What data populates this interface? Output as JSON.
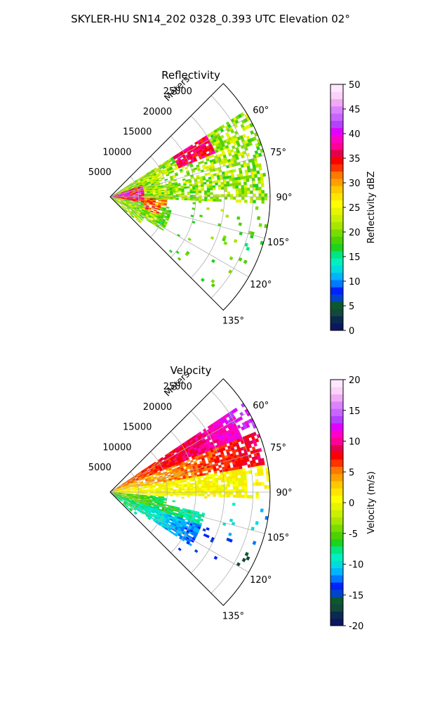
{
  "figure": {
    "suptitle": "SKYLER-HU  SN14_202  0328_0.393 UTC Elevation 02°"
  },
  "chart_data": [
    {
      "type": "heatmap",
      "title": "Reflectivity",
      "radial_label": "Meters",
      "radial_ticks": [
        5000,
        10000,
        15000,
        20000,
        25000
      ],
      "radial_tick_labels": [
        "5000",
        "10000",
        "15000",
        "20000",
        "25000"
      ],
      "r_max": 28000,
      "theta_range_deg": [
        45,
        135
      ],
      "angle_ticks": [
        60,
        75,
        90,
        105,
        120,
        135
      ],
      "angle_tick_labels": [
        "60°",
        "75°",
        "90°",
        "105°",
        "120°",
        "135°"
      ],
      "grid": true,
      "colorbar": {
        "label": "Reflectivity dBZ",
        "vmin": 0,
        "vmax": 50,
        "ticks": [
          0,
          5,
          10,
          15,
          20,
          25,
          30,
          35,
          40,
          45,
          50
        ],
        "tick_labels": [
          "0",
          "5",
          "10",
          "15",
          "20",
          "25",
          "30",
          "35",
          "40",
          "45",
          "50"
        ],
        "palette": [
          "#0b1760",
          "#0a2a50",
          "#14483a",
          "#0a5a2e",
          "#0044cc",
          "#0022ff",
          "#0078ff",
          "#00b4ff",
          "#00dcdc",
          "#00f0c0",
          "#00e680",
          "#1ed21e",
          "#4cd200",
          "#78dc00",
          "#a8e600",
          "#c8f000",
          "#e6f500",
          "#ffff00",
          "#ffe600",
          "#ffc800",
          "#ffa000",
          "#ff7800",
          "#ff3200",
          "#ff0000",
          "#e6004b",
          "#ff0096",
          "#ff00c8",
          "#e100ff",
          "#b441ff",
          "#c864ff",
          "#dc82ff",
          "#f0aaf5",
          "#fad2fa",
          "#ffe8ff"
        ]
      },
      "data_summary": "Reflectivity values range roughly 10–45 dBZ; strongest echoes (35–45 dBZ) near the radar at 70–100° and in a band at 60–65° around 15000–20000 m."
    },
    {
      "type": "heatmap",
      "title": "Velocity",
      "radial_label": "Meters",
      "radial_ticks": [
        5000,
        10000,
        15000,
        20000,
        25000
      ],
      "radial_tick_labels": [
        "5000",
        "10000",
        "15000",
        "20000",
        "25000"
      ],
      "r_max": 28000,
      "theta_range_deg": [
        45,
        135
      ],
      "angle_ticks": [
        60,
        75,
        90,
        105,
        120,
        135
      ],
      "angle_tick_labels": [
        "60°",
        "75°",
        "90°",
        "105°",
        "120°",
        "135°"
      ],
      "grid": true,
      "colorbar": {
        "label": "Velocity (m/s)",
        "vmin": -20,
        "vmax": 20,
        "ticks": [
          -20,
          -15,
          -10,
          -5,
          0,
          5,
          10,
          15,
          20
        ],
        "tick_labels": [
          "-20",
          "-15",
          "-10",
          "-5",
          "0",
          "5",
          "10",
          "15",
          "20"
        ],
        "palette": [
          "#0b1760",
          "#0a2a50",
          "#14483a",
          "#0a5a2e",
          "#0044cc",
          "#0022ff",
          "#0078ff",
          "#00b4ff",
          "#00dcdc",
          "#00f0c0",
          "#00e680",
          "#1ed21e",
          "#4cd200",
          "#78dc00",
          "#a8e600",
          "#c8f000",
          "#e6f500",
          "#ffff00",
          "#ffe600",
          "#ffc800",
          "#ffa000",
          "#ff7800",
          "#ff3200",
          "#ff0000",
          "#e6004b",
          "#ff0096",
          "#ff00c8",
          "#e100ff",
          "#b441ff",
          "#c864ff",
          "#dc82ff",
          "#f0aaf5",
          "#fad2fa",
          "#ffe8ff"
        ]
      },
      "data_summary": "Velocity values range roughly -12 to +12 m/s; positive (red/magenta, up to ~12 m/s) at 60–75° far range, near-zero yellow at 80–95°, negative (green/cyan, down to ~-12 m/s) at 105–125°."
    }
  ]
}
